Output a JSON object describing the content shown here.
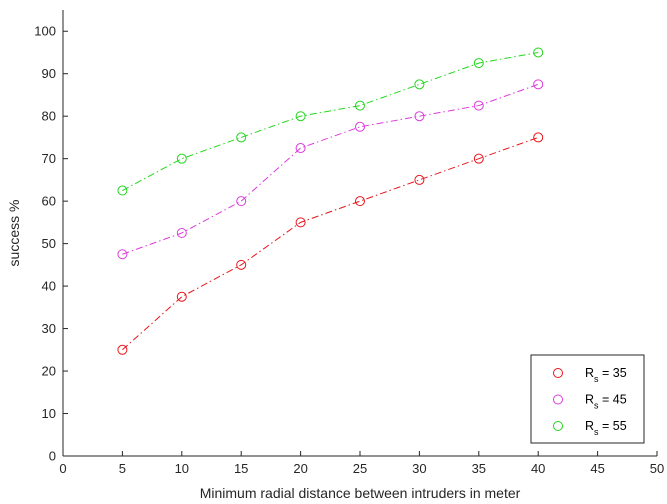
{
  "chart_data": {
    "type": "line",
    "title": "",
    "xlabel": "Minimum radial distance between intruders in meter",
    "ylabel": "success  %",
    "xlim": [
      0,
      50
    ],
    "ylim": [
      0,
      105
    ],
    "xticks": [
      "0",
      "5",
      "10",
      "15",
      "20",
      "25",
      "30",
      "35",
      "40",
      "45",
      "50"
    ],
    "yticks": [
      "0",
      "10",
      "20",
      "30",
      "40",
      "50",
      "60",
      "70",
      "80",
      "90",
      "100"
    ],
    "grid": false,
    "legend_position": "bottom-right",
    "x": [
      5,
      10,
      15,
      20,
      25,
      30,
      35,
      40
    ],
    "series": [
      {
        "name": "R",
        "subscript": "s",
        "suffix": " = 35",
        "color": "#e8151b",
        "values": [
          25,
          37.5,
          45,
          55,
          60,
          65,
          70,
          75
        ]
      },
      {
        "name": "R",
        "subscript": "s",
        "suffix": " = 45",
        "color": "#dc3bdc",
        "values": [
          47.5,
          52.5,
          60,
          72.5,
          77.5,
          80,
          82.5,
          87.5
        ]
      },
      {
        "name": "R",
        "subscript": "s",
        "suffix": " = 55",
        "color": "#22d61c",
        "values": [
          62.5,
          70,
          75,
          80,
          82.5,
          87.5,
          92.5,
          95
        ]
      }
    ],
    "line_style": "dash-dot",
    "marker": "circle"
  }
}
